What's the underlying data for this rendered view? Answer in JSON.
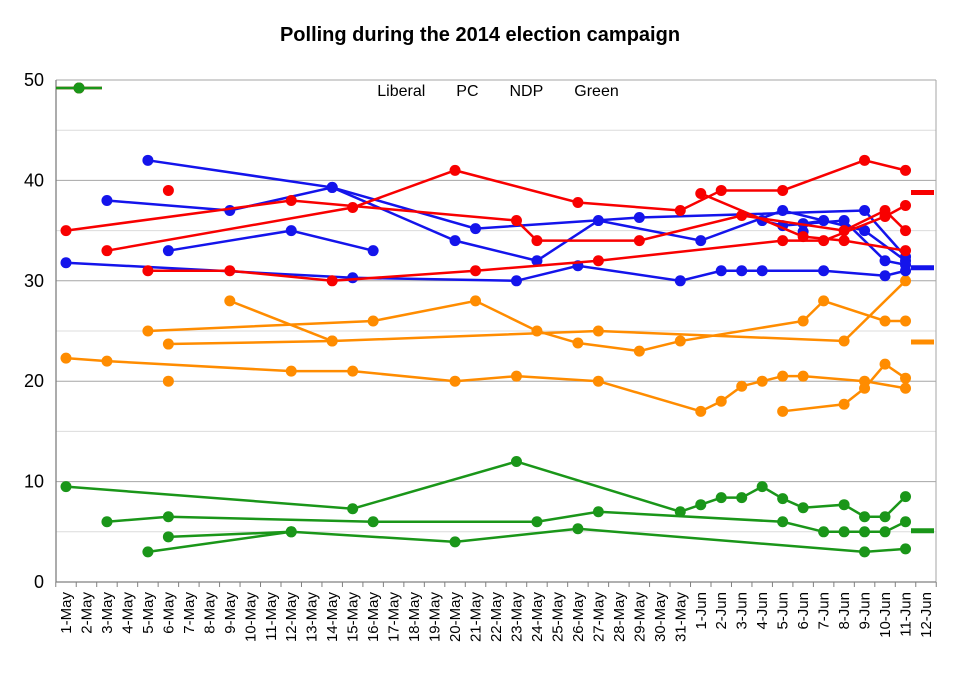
{
  "chart_data": {
    "type": "line",
    "title": "Polling during the 2014 election campaign",
    "xlabel": "",
    "ylabel": "",
    "ylim": [
      0,
      50
    ],
    "y_ticks": [
      0,
      10,
      20,
      30,
      40,
      50
    ],
    "y_minor_interval": 5,
    "grid": true,
    "legend_position": "top-center",
    "categories": [
      "1-May",
      "2-May",
      "3-May",
      "4-May",
      "5-May",
      "6-May",
      "7-May",
      "8-May",
      "9-May",
      "10-May",
      "11-May",
      "12-May",
      "13-May",
      "14-May",
      "15-May",
      "16-May",
      "17-May",
      "18-May",
      "19-May",
      "20-May",
      "21-May",
      "22-May",
      "23-May",
      "24-May",
      "25-May",
      "26-May",
      "27-May",
      "28-May",
      "29-May",
      "30-May",
      "31-May",
      "1-Jun",
      "2-Jun",
      "3-Jun",
      "4-Jun",
      "5-Jun",
      "6-Jun",
      "7-Jun",
      "8-Jun",
      "9-Jun",
      "10-Jun",
      "11-Jun",
      "12-Jun"
    ],
    "parties": [
      {
        "name": "Liberal",
        "color": "#f80000",
        "result_marker": 38.8,
        "lines": [
          [
            [
              0,
              35
            ],
            [
              11,
              38
            ],
            [
              22,
              36
            ],
            [
              23,
              34
            ],
            [
              28,
              34
            ],
            [
              33,
              36.5
            ],
            [
              38,
              35
            ],
            [
              40,
              37
            ],
            [
              41,
              35
            ]
          ],
          [
            [
              4,
              31
            ],
            [
              8,
              31
            ],
            [
              13,
              30
            ],
            [
              20,
              31
            ],
            [
              26,
              32
            ],
            [
              35,
              34
            ],
            [
              37,
              34
            ],
            [
              40,
              36.4
            ],
            [
              41,
              37.5
            ]
          ],
          [
            [
              2,
              33
            ],
            [
              14,
              37.3
            ],
            [
              19,
              41
            ],
            [
              25,
              37.8
            ],
            [
              30,
              37
            ],
            [
              32,
              39
            ],
            [
              35,
              39
            ],
            [
              39,
              42
            ],
            [
              41,
              41
            ]
          ],
          [
            [
              5,
              39
            ]
          ],
          [
            [
              31,
              38.7
            ],
            [
              36,
              34.4
            ],
            [
              38,
              34
            ],
            [
              41,
              33
            ]
          ]
        ]
      },
      {
        "name": "PC",
        "color": "#1414eb",
        "result_marker": 31.3,
        "lines": [
          [
            [
              4,
              42
            ],
            [
              13,
              39.3
            ],
            [
              20,
              35.2
            ],
            [
              28,
              36.3
            ],
            [
              39,
              37
            ],
            [
              41,
              32.4
            ]
          ],
          [
            [
              2,
              38
            ],
            [
              8,
              37
            ],
            [
              13,
              39.3
            ],
            [
              19,
              34
            ],
            [
              23,
              32
            ],
            [
              26,
              36
            ],
            [
              31,
              34
            ],
            [
              35,
              37
            ],
            [
              39,
              35
            ],
            [
              41,
              32
            ]
          ],
          [
            [
              0,
              31.8
            ],
            [
              14,
              30.3
            ],
            [
              22,
              30
            ],
            [
              25,
              31.5
            ],
            [
              30,
              30
            ],
            [
              32,
              31
            ],
            [
              33,
              31
            ],
            [
              34,
              31
            ],
            [
              37,
              31
            ],
            [
              40,
              30.5
            ],
            [
              41,
              31
            ]
          ],
          [
            [
              5,
              33
            ],
            [
              11,
              35
            ],
            [
              15,
              33
            ]
          ],
          [
            [
              34,
              36
            ],
            [
              35,
              35.5
            ],
            [
              38,
              36
            ],
            [
              40,
              32
            ],
            [
              41,
              31.6
            ]
          ],
          [
            [
              36,
              35.7
            ],
            [
              37,
              36
            ]
          ],
          [
            [
              36,
              34.9
            ]
          ]
        ]
      },
      {
        "name": "NDP",
        "color": "#ff8c00",
        "result_marker": 23.9,
        "lines": [
          [
            [
              0,
              22.3
            ],
            [
              2,
              22
            ],
            [
              11,
              21
            ],
            [
              14,
              21
            ],
            [
              19,
              20
            ],
            [
              22,
              20.5
            ],
            [
              26,
              20
            ],
            [
              31,
              17
            ],
            [
              32,
              18
            ],
            [
              33,
              19.5
            ],
            [
              34,
              20
            ],
            [
              35,
              20.5
            ],
            [
              36,
              20.5
            ],
            [
              39,
              20
            ],
            [
              41,
              19.3
            ]
          ],
          [
            [
              4,
              25
            ],
            [
              15,
              26
            ],
            [
              20,
              28
            ],
            [
              23,
              25
            ],
            [
              25,
              23.8
            ],
            [
              28,
              23
            ],
            [
              30,
              24
            ],
            [
              36,
              26
            ],
            [
              37,
              28
            ],
            [
              40,
              26
            ],
            [
              41,
              26
            ]
          ],
          [
            [
              5,
              23.7
            ],
            [
              13,
              24
            ],
            [
              26,
              25
            ],
            [
              38,
              24
            ],
            [
              41,
              30
            ]
          ],
          [
            [
              8,
              28
            ],
            [
              13,
              24
            ]
          ],
          [
            [
              35,
              17
            ],
            [
              38,
              17.7
            ],
            [
              39,
              19.3
            ],
            [
              40,
              21.7
            ],
            [
              41,
              20.3
            ]
          ],
          [
            [
              5,
              20
            ]
          ]
        ]
      },
      {
        "name": "Green",
        "color": "#1a9619",
        "result_marker": 5.1,
        "lines": [
          [
            [
              0,
              9.5
            ],
            [
              14,
              7.3
            ],
            [
              22,
              12
            ],
            [
              30,
              7
            ],
            [
              31,
              7.7
            ],
            [
              32,
              8.4
            ],
            [
              33,
              8.4
            ],
            [
              34,
              9.5
            ],
            [
              35,
              8.3
            ],
            [
              36,
              7.4
            ],
            [
              38,
              7.7
            ],
            [
              39,
              6.5
            ],
            [
              40,
              6.5
            ],
            [
              41,
              8.5
            ]
          ],
          [
            [
              2,
              6
            ],
            [
              5,
              6.5
            ],
            [
              15,
              6
            ],
            [
              23,
              6
            ],
            [
              26,
              7
            ],
            [
              35,
              6
            ],
            [
              37,
              5
            ],
            [
              38,
              5
            ],
            [
              39,
              5
            ],
            [
              40,
              5
            ],
            [
              41,
              6
            ]
          ],
          [
            [
              4,
              3
            ],
            [
              11,
              5
            ],
            [
              19,
              4
            ],
            [
              25,
              5.3
            ],
            [
              39,
              3
            ],
            [
              41,
              3.3
            ]
          ],
          [
            [
              5,
              4.5
            ],
            [
              11,
              5
            ]
          ]
        ]
      }
    ]
  }
}
